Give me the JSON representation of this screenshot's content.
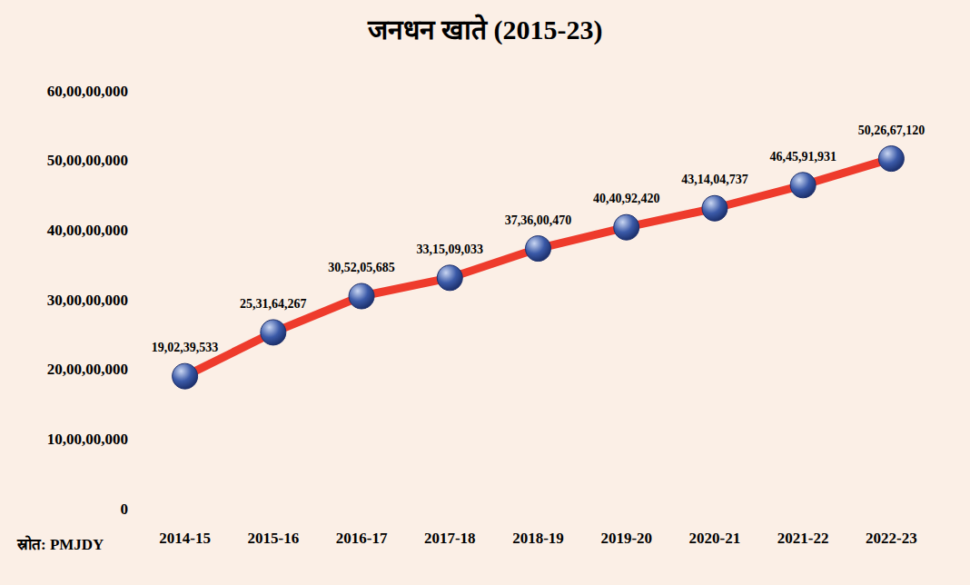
{
  "chart_data": {
    "type": "line",
    "title": "जनधन खाते (2015-23)",
    "annotation": "स्रोत: PMJDY",
    "categories": [
      "2014-15",
      "2015-16",
      "2016-17",
      "2017-18",
      "2018-19",
      "2019-20",
      "2020-21",
      "2021-22",
      "2022-23"
    ],
    "values": [
      190239533,
      253164267,
      305205685,
      331509033,
      373600470,
      404092420,
      431404737,
      464591931,
      502667120
    ],
    "value_labels": [
      "19,02,39,533",
      "25,31,64,267",
      "30,52,05,685",
      "33,15,09,033",
      "37,36,00,470",
      "40,40,92,420",
      "43,14,04,737",
      "46,45,91,931",
      "50,26,67,120"
    ],
    "color": "#ee3b2c",
    "marker": "circle",
    "data_labels": true,
    "grid": false,
    "ylim": [
      0,
      600000000
    ],
    "yticks": [
      0,
      {
        "value": 100000000,
        "label": "10,00,00,000"
      },
      {
        "value": 200000000,
        "label": "20,00,00,000"
      },
      {
        "value": 300000000,
        "label": "30,00,00,000"
      },
      {
        "value": 400000000,
        "label": "40,00,00,000"
      },
      {
        "value": 500000000,
        "label": "50,00,00,000"
      },
      {
        "value": 600000000,
        "label": "60,00,00,000"
      }
    ]
  }
}
